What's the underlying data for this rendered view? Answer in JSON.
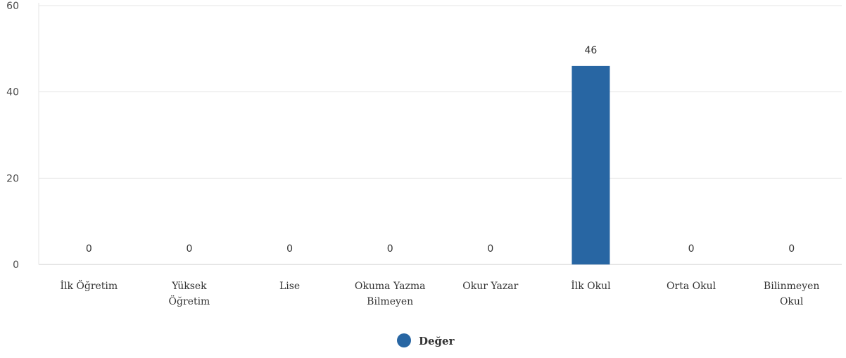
{
  "chart_data": {
    "type": "bar",
    "categories": [
      "İlk Öğretim",
      "Yüksek Öğretim",
      "Lise",
      "Okuma Yazma Bilmeyen",
      "Okur Yazar",
      "İlk Okul",
      "Orta Okul",
      "Bilinmeyen Okul"
    ],
    "category_lines": [
      [
        "İlk Öğretim"
      ],
      [
        "Yüksek",
        "Öğretim"
      ],
      [
        "Lise"
      ],
      [
        "Okuma Yazma",
        "Bilmeyen"
      ],
      [
        "Okur Yazar"
      ],
      [
        "İlk Okul"
      ],
      [
        "Orta Okul"
      ],
      [
        "Bilinmeyen",
        "Okul"
      ]
    ],
    "series": [
      {
        "name": "Değer",
        "values": [
          0,
          0,
          0,
          0,
          0,
          46,
          0,
          0
        ],
        "color": "#2866a3"
      }
    ],
    "ylim": [
      0,
      60
    ],
    "yticks": [
      0,
      20,
      40,
      60
    ],
    "grid": true,
    "data_labels": true,
    "legend_position": "bottom-center",
    "colors": {
      "bar": "#2866a3",
      "grid": "#e6e6e6",
      "axis": "#cccccc"
    }
  }
}
